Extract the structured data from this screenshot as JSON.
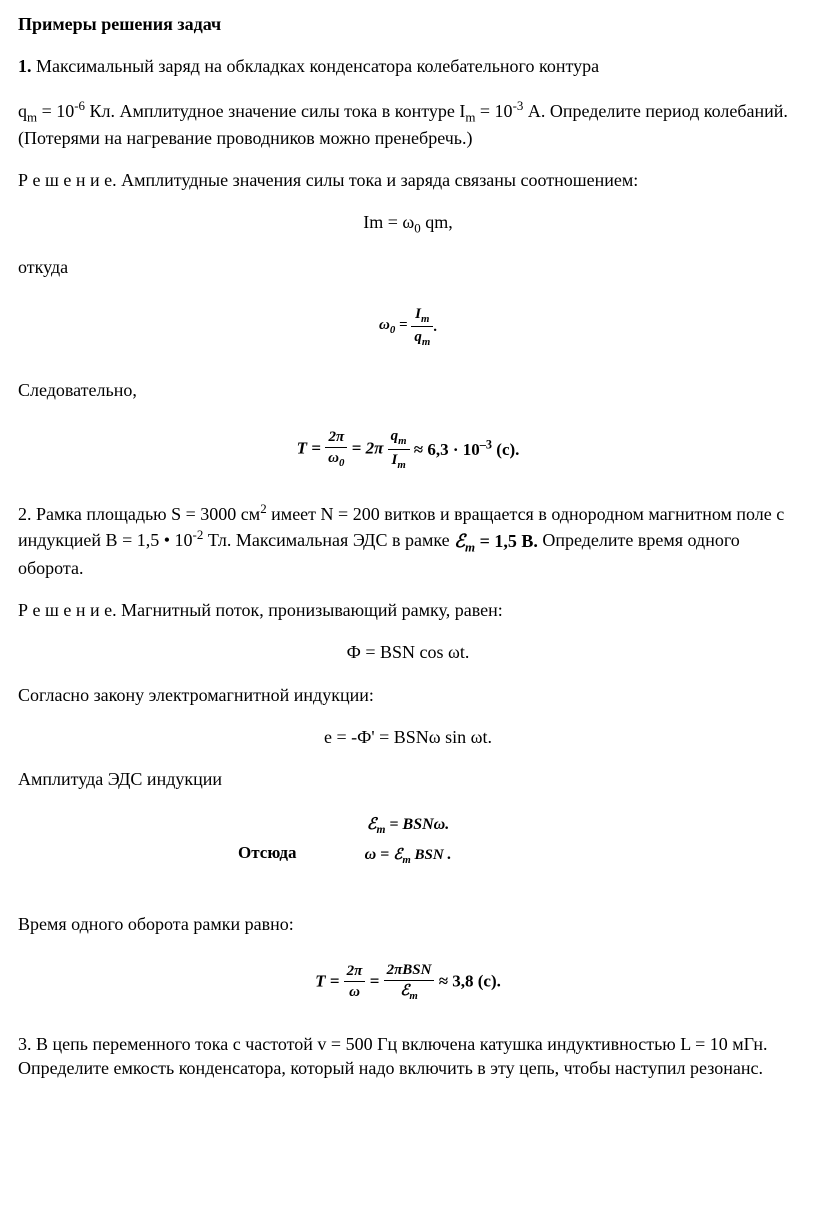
{
  "title": "Примеры решения задач",
  "p1_num": "1.",
  "p1_text": " Максимальный заряд на обкладках конденсатора колебательного контура",
  "p2_a": "q",
  "p2_a_sub": "m",
  "p2_b": " = 10",
  "p2_b_sup": "-6",
  "p2_c": " Кл. Амплитудное значение силы тока в контуре I",
  "p2_c_sub": "m",
  "p2_d": " = 10",
  "p2_d_sup": "-3",
  "p2_e": " А. Определите период колебаний. (Потерями на нагревание проводников можно пренебречь.)",
  "p3": "Р е ш е н и е. Амплитудные значения силы тока и заряда связаны соотношением:",
  "eq1_a": "Im = ω",
  "eq1_sub": "0",
  "eq1_b": " qm,",
  "p4": "откуда",
  "f1": {
    "lhs_a": "ω",
    "lhs_sub": "0",
    "lhs_b": " = ",
    "num_a": "I",
    "num_sub": "m",
    "den_a": "q",
    "den_sub": "m",
    "tail": "."
  },
  "p5": "Следовательно,",
  "f2": {
    "a": "T = ",
    "frac1_num": "2π",
    "frac1_den_a": "ω",
    "frac1_den_sub": "0",
    "b": " = 2π ",
    "frac2_num_a": "q",
    "frac2_num_sub": "m",
    "frac2_den_a": "I",
    "frac2_den_sub": "m",
    "c": " ≈ 6,3 · 10",
    "c_sup": "–3",
    "d": " (с)."
  },
  "p6_a": "2. Рамка площадью S = 3000 см",
  "p6_a_sup": "2",
  "p6_b": " имеет N = 200 витков и вращается в однородном магнитном поле с индукцией В = 1,5 • 10",
  "p6_b_sup": "-2",
  "p6_c": " Тл. Максимальная ЭДС в рамке ",
  "p6_formula_a": "ℰ",
  "p6_formula_sub": "m",
  "p6_formula_b": " = 1,5 В.",
  "p6_d": " Определите время одного оборота.",
  "p7": "Р е ш е н и е. Магнитный поток, пронизывающий рамку, равен:",
  "eq2": "Ф = BSN cos ωt.",
  "p8": "Согласно закону электромагнитной индукции:",
  "eq3": "е = -Ф' = BSNω sin ωt.",
  "p9": "Амплитуда ЭДС индукции",
  "block2": {
    "otsyuda": "Отсюда",
    "row1_a": "ℰ",
    "row1_sub": "m",
    "row1_b": " = BSNω.",
    "row2_a": "ω = ",
    "row2_num_a": "ℰ",
    "row2_num_sub": "m",
    "row2_den": "BSN",
    "row2_tail": "."
  },
  "p10": "Время одного оборота рамки равно:",
  "f3": {
    "a": "T = ",
    "frac1_num": "2π",
    "frac1_den": "ω",
    "b": " = ",
    "frac2_num": "2πBSN",
    "frac2_den_a": "ℰ",
    "frac2_den_sub": "m",
    "c": " ≈ 3,8 (с)."
  },
  "p11": "3. В цепь переменного тока с частотой v = 500 Гц включена катушка индуктивностью L = 10 мГн. Определите емкость конденсатора, который надо включить в эту цепь, чтобы наступил резонанс."
}
